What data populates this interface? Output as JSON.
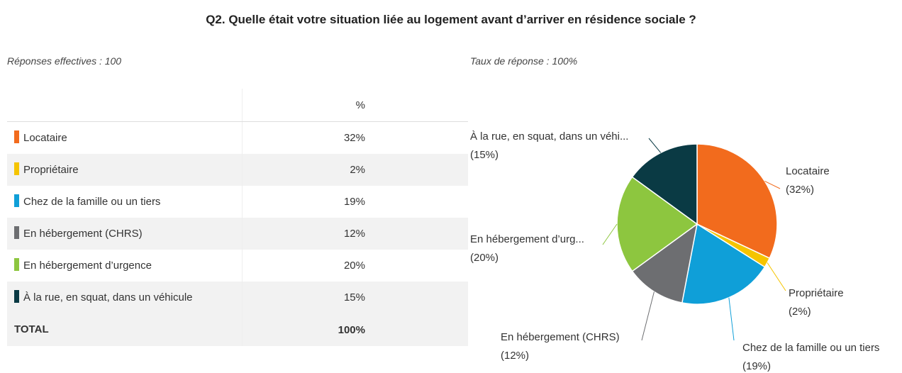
{
  "title": "Q2. Quelle était votre situation liée au logement avant d’arriver en résidence sociale ?",
  "responses": "Réponses effectives : 100",
  "rate": "Taux de réponse : 100%",
  "table": {
    "header": "%",
    "rows": [
      [
        "Locataire",
        "32%"
      ],
      [
        "Propriétaire",
        "2%"
      ],
      [
        "Chez de la famille ou un tiers",
        "19%"
      ],
      [
        "En hébergement (CHRS)",
        "12%"
      ],
      [
        "En hébergement d’urgence",
        "20%"
      ],
      [
        "À la rue, en squat, dans un véhicule",
        "15%"
      ]
    ],
    "total": [
      "TOTAL",
      "100%"
    ]
  },
  "chart_data": {
    "type": "pie",
    "categories": [
      "Locataire",
      "Propriétaire",
      "Chez de la famille ou un tiers",
      "En hébergement (CHRS)",
      "En hébergement d’urg...",
      "À la rue, en squat, dans un véhi..."
    ],
    "values": [
      32,
      2,
      19,
      12,
      20,
      15
    ],
    "value_labels": [
      "(32%)",
      "(2%)",
      "(19%)",
      "(12%)",
      "(20%)",
      "(15%)"
    ],
    "colors": [
      "#f26b1d",
      "#f5c400",
      "#0f9fd8",
      "#6d6e71",
      "#8dc63f",
      "#0a3a44"
    ]
  }
}
